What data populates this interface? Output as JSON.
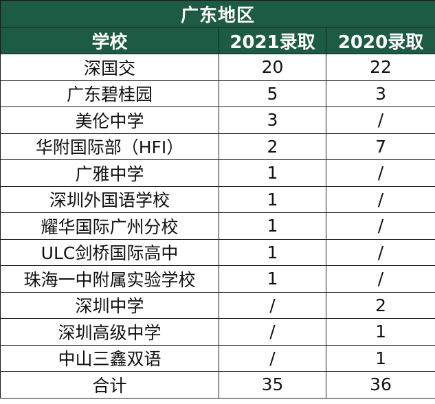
{
  "table": {
    "title": "广东地区",
    "headers": [
      "学校",
      "2021录取",
      "2020录取"
    ],
    "rows": [
      {
        "school": "深国交",
        "y2021": "20",
        "y2020": "22"
      },
      {
        "school": "广东碧桂园",
        "y2021": "5",
        "y2020": "3"
      },
      {
        "school": "美伦中学",
        "y2021": "3",
        "y2020": "/"
      },
      {
        "school": "华附国际部（HFI）",
        "y2021": "2",
        "y2020": "7"
      },
      {
        "school": "广雅中学",
        "y2021": "1",
        "y2020": "/"
      },
      {
        "school": "深圳外国语学校",
        "y2021": "1",
        "y2020": "/"
      },
      {
        "school": "耀华国际广州分校",
        "y2021": "1",
        "y2020": "/"
      },
      {
        "school": "ULC剑桥国际高中",
        "y2021": "1",
        "y2020": "/"
      },
      {
        "school": "珠海一中附属实验学校",
        "y2021": "1",
        "y2020": "/"
      },
      {
        "school": "深圳中学",
        "y2021": "/",
        "y2020": "2"
      },
      {
        "school": "深圳高级中学",
        "y2021": "/",
        "y2020": "1"
      },
      {
        "school": "中山三鑫双语",
        "y2021": "/",
        "y2020": "1"
      },
      {
        "school": "合计",
        "y2021": "35",
        "y2020": "36"
      }
    ]
  },
  "colors": {
    "header_bg": "#1e5b44",
    "header_text": "#ffffff",
    "border": "#1a1a1a"
  }
}
